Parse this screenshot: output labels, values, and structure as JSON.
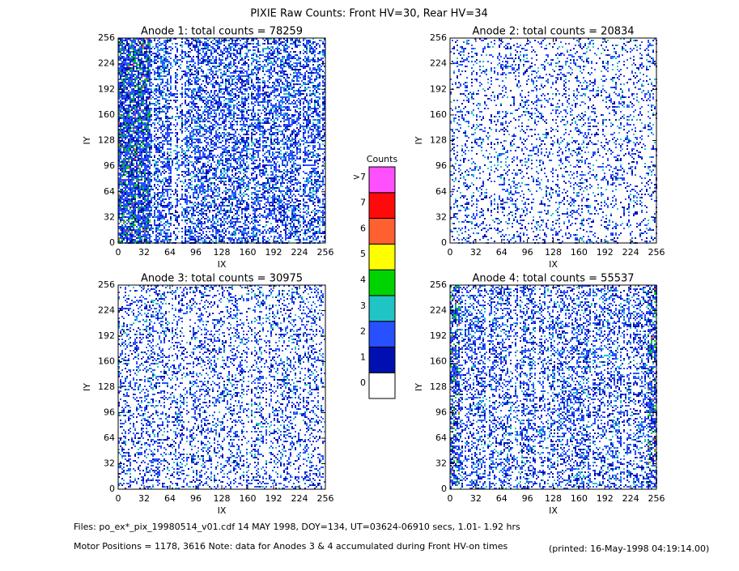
{
  "title": "PIXIE Raw Counts:  Front HV=30, Rear HV=34",
  "chart_data": [
    {
      "type": "heatmap",
      "title": "Anode 1: total counts = 78259",
      "xlabel": "IX",
      "ylabel": "IY",
      "xlim": [
        0,
        256
      ],
      "ylim": [
        0,
        256
      ],
      "xticks": [
        0,
        32,
        64,
        96,
        128,
        160,
        192,
        224,
        256
      ],
      "yticks": [
        0,
        32,
        64,
        96,
        128,
        160,
        192,
        224,
        256
      ]
    },
    {
      "type": "heatmap",
      "title": "Anode 2: total counts = 20834",
      "xlabel": "IX",
      "ylabel": "IY",
      "xlim": [
        0,
        256
      ],
      "ylim": [
        0,
        256
      ],
      "xticks": [
        0,
        32,
        64,
        96,
        128,
        160,
        192,
        224,
        256
      ],
      "yticks": [
        0,
        32,
        64,
        96,
        128,
        160,
        192,
        224,
        256
      ]
    },
    {
      "type": "heatmap",
      "title": "Anode 3: total counts = 30975",
      "xlabel": "IX",
      "ylabel": "IY",
      "xlim": [
        0,
        256
      ],
      "ylim": [
        0,
        256
      ],
      "xticks": [
        0,
        32,
        64,
        96,
        128,
        160,
        192,
        224,
        256
      ],
      "yticks": [
        0,
        32,
        64,
        96,
        128,
        160,
        192,
        224,
        256
      ]
    },
    {
      "type": "heatmap",
      "title": "Anode 4: total counts = 55537",
      "xlabel": "IX",
      "ylabel": "IY",
      "xlim": [
        0,
        256
      ],
      "ylim": [
        0,
        256
      ],
      "xticks": [
        0,
        32,
        64,
        96,
        128,
        160,
        192,
        224,
        256
      ],
      "yticks": [
        0,
        32,
        64,
        96,
        128,
        160,
        192,
        224,
        256
      ]
    }
  ],
  "colorbar": {
    "title": "Counts",
    "labels": [
      "0",
      "1",
      "2",
      "3",
      "4",
      "5",
      "6",
      "7",
      ">7"
    ],
    "colors": [
      "#ffffff",
      "#0010b0",
      "#2850ff",
      "#20c4c4",
      "#00d400",
      "#ffff00",
      "#ff6030",
      "#ff0a0a",
      "#ff50ff"
    ]
  },
  "footer": {
    "files": "Files: po_ex*_pix_19980514_v01.cdf    14 MAY 1998, DOY=134, UT=03624-06910 secs,  1.01- 1.92 hrs",
    "motor": "Motor Positions = 1178, 3616   Note: data for Anodes 3 & 4 accumulated during Front HV-on times",
    "printed": "(printed: 16-May-1998 04:19:14.00)"
  }
}
